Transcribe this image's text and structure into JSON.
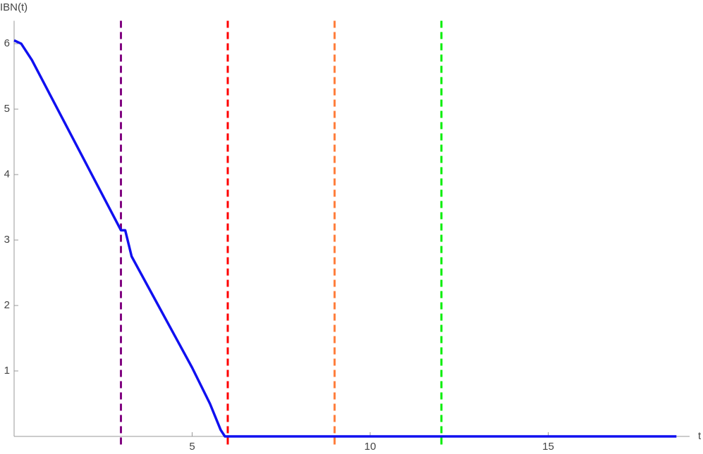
{
  "chart_data": {
    "type": "line",
    "x_label": "t",
    "y_label": "IBN(t)",
    "xlim": [
      0,
      18.97
    ],
    "ylim": [
      0,
      6.35
    ],
    "xticks": [
      5,
      10,
      15
    ],
    "yticks": [
      1,
      2,
      3,
      4,
      5,
      6
    ],
    "series": [
      {
        "color": "#1010f0",
        "x": [
          0,
          0.2,
          0.5,
          1,
          2,
          3,
          3.12,
          3.3,
          4,
          5,
          5.5,
          5.8,
          5.92,
          18.6
        ],
        "values": [
          6.05,
          6.0,
          5.75,
          5.23,
          4.19,
          3.15,
          3.15,
          2.75,
          2.05,
          1.05,
          0.5,
          0.1,
          0,
          0
        ]
      }
    ],
    "vlines": [
      {
        "x": 3,
        "color": "#800080"
      },
      {
        "x": 6,
        "color": "#ff0000"
      },
      {
        "x": 9,
        "color": "#ffcc00"
      },
      {
        "x": 9,
        "color": "#ff7f3f"
      },
      {
        "x": 12,
        "color": "#00ee00"
      }
    ]
  }
}
